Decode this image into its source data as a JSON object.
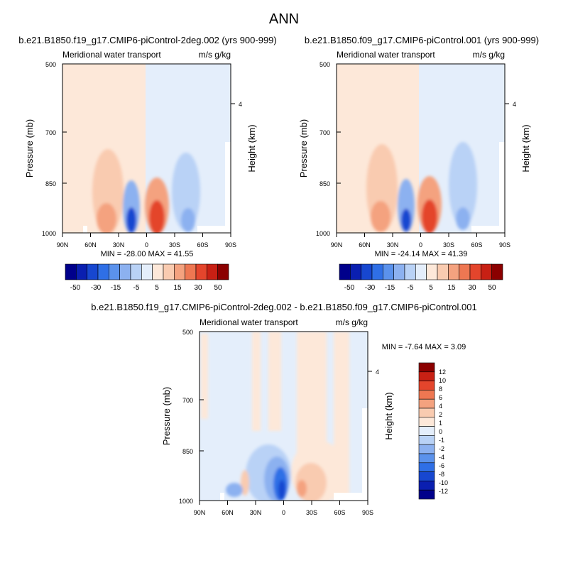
{
  "figure": {
    "main_title": "ANN",
    "legend_colors": [
      "#00008b",
      "#0a1fb0",
      "#1747d0",
      "#2f6fe6",
      "#5b92ec",
      "#8cb1f0",
      "#b9d2f6",
      "#e4eefb",
      "#fde8d9",
      "#f9cbb0",
      "#f4a27f",
      "#ee7752",
      "#e4452c",
      "#c82014",
      "#8b0000"
    ],
    "bottom_bar_colors": [
      "#00008b",
      "#0a1fb0",
      "#1747d0",
      "#2f6fe6",
      "#5b92ec",
      "#8cb1f0",
      "#b9d2f6",
      "#e4eefb",
      "#fde8d9",
      "#f9cbb0",
      "#f4a27f",
      "#ee7752",
      "#e4452c",
      "#c82014",
      "#8b0000"
    ]
  },
  "chart_data": [
    {
      "type": "heatmap",
      "title": "b.e21.B1850.f19_g17.CMIP6-piControl-2deg.002 (yrs 900-999)",
      "left_subtitle": "Meridional water transport",
      "right_subtitle": "m/s g/kg",
      "xlabel": "",
      "ylabel": "Pressure (mb)",
      "right_label": "Height (km)",
      "x_tick_labels": [
        "90N",
        "60N",
        "30N",
        "0",
        "30S",
        "60S",
        "90S"
      ],
      "y_tick_labels": [
        "500",
        "700",
        "850",
        "1000"
      ],
      "right_tick_labels": [
        "4"
      ],
      "stats": "MIN = -28.00  MAX =  41.55",
      "colorbar_levels": [
        "-50",
        "-30",
        "-15",
        "-5",
        "5",
        "15",
        "30",
        "50"
      ],
      "min": -28.0,
      "max": 41.55
    },
    {
      "type": "heatmap",
      "title": "b.e21.B1850.f09_g17.CMIP6-piControl.001 (yrs 900-999)",
      "left_subtitle": "Meridional water transport",
      "right_subtitle": "m/s g/kg",
      "xlabel": "",
      "ylabel": "Pressure (mb)",
      "right_label": "Height (km)",
      "x_tick_labels": [
        "90N",
        "60N",
        "30N",
        "0",
        "30S",
        "60S",
        "90S"
      ],
      "y_tick_labels": [
        "500",
        "700",
        "850",
        "1000"
      ],
      "right_tick_labels": [
        "4"
      ],
      "stats": "MIN = -24.14  MAX =  41.39",
      "colorbar_levels": [
        "-50",
        "-30",
        "-15",
        "-5",
        "5",
        "15",
        "30",
        "50"
      ],
      "min": -24.14,
      "max": 41.39
    },
    {
      "type": "heatmap",
      "title": "b.e21.B1850.f19_g17.CMIP6-piControl-2deg.002 - b.e21.B1850.f09_g17.CMIP6-piControl.001",
      "left_subtitle": "Meridional water transport",
      "right_subtitle": "m/s g/kg",
      "xlabel": "",
      "ylabel": "Pressure (mb)",
      "right_label": "Height (km)",
      "x_tick_labels": [
        "90N",
        "60N",
        "30N",
        "0",
        "30S",
        "60S",
        "90S"
      ],
      "y_tick_labels": [
        "500",
        "700",
        "850",
        "1000"
      ],
      "right_tick_labels": [
        "4"
      ],
      "stats": "MIN = -7.64  MAX =   3.09",
      "colorbar_levels": [
        "12",
        "10",
        "8",
        "6",
        "4",
        "2",
        "1",
        "0",
        "-1",
        "-2",
        "-4",
        "-6",
        "-8",
        "-10",
        "-12"
      ],
      "min": -7.64,
      "max": 3.09
    }
  ]
}
